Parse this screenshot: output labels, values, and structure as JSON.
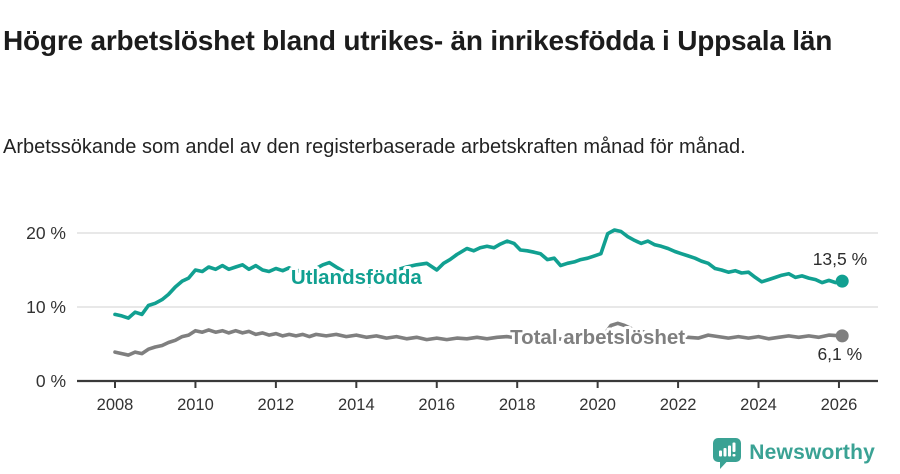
{
  "header": {
    "title": "Högre arbetslöshet bland utrikes- än inrikesfödda i Uppsala län",
    "subtitle": "Arbetssökande som andel av den registerbaserade arbetskraften månad för månad."
  },
  "footer": {
    "brand": "Newsworthy",
    "logo_icon": "newsworthy-speech-bubble-bar-chart-icon"
  },
  "colors": {
    "teal": "#11a091",
    "gray": "#7f7f7f",
    "axis": "#3a3a3a",
    "axis_text": "#333333",
    "grid": "#dadada",
    "value_label": "#2d2d2d",
    "title": "#1c1c1c",
    "subtitle": "#232323",
    "brand": "#3aa294",
    "background": "#ffffff"
  },
  "chart_data": {
    "type": "line",
    "title": "Högre arbetslöshet bland utrikes- än inrikesfödda i Uppsala län",
    "subtitle": "Arbetssökande som andel av den registerbaserade arbetskraften månad för månad.",
    "xlabel": "",
    "ylabel": "",
    "x_range": [
      2007.1,
      2026.9
    ],
    "ylim": [
      0,
      22
    ],
    "grid": "horizontal",
    "legend_position": "inline-labels",
    "x_ticks": [
      2008,
      2010,
      2012,
      2014,
      2016,
      2018,
      2020,
      2022,
      2024,
      2026
    ],
    "x_tick_labels": [
      "2008",
      "2010",
      "2012",
      "2014",
      "2016",
      "2018",
      "2020",
      "2022",
      "2024",
      "2026"
    ],
    "y_ticks": [
      0,
      10,
      20
    ],
    "y_tick_labels": [
      "0 %",
      "10 %",
      "20 %"
    ],
    "series": [
      {
        "name": "Utlandsfödda",
        "color": "#11a091",
        "end_label": "13,5 %",
        "end_value": 13.5,
        "end_label_offset": [
          25,
          -16
        ],
        "inline_label": {
          "text": "Utlandsfödda",
          "x": 2014.0,
          "y": 14.0
        },
        "points": [
          [
            2008.0,
            9.0
          ],
          [
            2008.17,
            8.8
          ],
          [
            2008.33,
            8.5
          ],
          [
            2008.5,
            9.3
          ],
          [
            2008.67,
            9.0
          ],
          [
            2008.83,
            10.2
          ],
          [
            2009.0,
            10.5
          ],
          [
            2009.17,
            11.0
          ],
          [
            2009.33,
            11.7
          ],
          [
            2009.5,
            12.7
          ],
          [
            2009.67,
            13.5
          ],
          [
            2009.83,
            13.9
          ],
          [
            2010.0,
            15.0
          ],
          [
            2010.17,
            14.8
          ],
          [
            2010.33,
            15.4
          ],
          [
            2010.5,
            15.1
          ],
          [
            2010.67,
            15.6
          ],
          [
            2010.83,
            15.1
          ],
          [
            2011.0,
            15.4
          ],
          [
            2011.17,
            15.7
          ],
          [
            2011.33,
            15.1
          ],
          [
            2011.5,
            15.6
          ],
          [
            2011.67,
            15.0
          ],
          [
            2011.83,
            14.8
          ],
          [
            2012.0,
            15.2
          ],
          [
            2012.17,
            14.9
          ],
          [
            2012.33,
            15.3
          ],
          [
            2012.5,
            14.8
          ],
          [
            2012.67,
            15.1
          ],
          [
            2012.83,
            14.8
          ],
          [
            2013.0,
            15.2
          ],
          [
            2013.17,
            15.7
          ],
          [
            2013.33,
            16.0
          ],
          [
            2013.5,
            15.4
          ],
          [
            2013.75,
            14.6
          ],
          [
            2014.0,
            14.2
          ],
          [
            2014.17,
            13.4
          ],
          [
            2014.33,
            12.9
          ],
          [
            2014.5,
            13.6
          ],
          [
            2014.67,
            14.2
          ],
          [
            2014.83,
            14.6
          ],
          [
            2015.0,
            15.0
          ],
          [
            2015.25,
            15.4
          ],
          [
            2015.5,
            15.7
          ],
          [
            2015.75,
            15.9
          ],
          [
            2016.0,
            15.0
          ],
          [
            2016.17,
            15.9
          ],
          [
            2016.33,
            16.4
          ],
          [
            2016.5,
            17.1
          ],
          [
            2016.75,
            17.9
          ],
          [
            2016.92,
            17.6
          ],
          [
            2017.08,
            18.0
          ],
          [
            2017.25,
            18.2
          ],
          [
            2017.42,
            18.0
          ],
          [
            2017.58,
            18.5
          ],
          [
            2017.75,
            18.9
          ],
          [
            2017.92,
            18.6
          ],
          [
            2018.08,
            17.7
          ],
          [
            2018.25,
            17.6
          ],
          [
            2018.42,
            17.4
          ],
          [
            2018.58,
            17.2
          ],
          [
            2018.75,
            16.4
          ],
          [
            2018.92,
            16.6
          ],
          [
            2019.08,
            15.6
          ],
          [
            2019.25,
            15.9
          ],
          [
            2019.42,
            16.1
          ],
          [
            2019.58,
            16.4
          ],
          [
            2019.75,
            16.6
          ],
          [
            2019.92,
            16.9
          ],
          [
            2020.08,
            17.2
          ],
          [
            2020.25,
            19.9
          ],
          [
            2020.42,
            20.4
          ],
          [
            2020.58,
            20.2
          ],
          [
            2020.75,
            19.5
          ],
          [
            2020.92,
            19.0
          ],
          [
            2021.08,
            18.6
          ],
          [
            2021.25,
            18.9
          ],
          [
            2021.42,
            18.4
          ],
          [
            2021.58,
            18.2
          ],
          [
            2021.75,
            17.9
          ],
          [
            2021.92,
            17.5
          ],
          [
            2022.08,
            17.2
          ],
          [
            2022.25,
            16.9
          ],
          [
            2022.42,
            16.6
          ],
          [
            2022.58,
            16.2
          ],
          [
            2022.75,
            15.9
          ],
          [
            2022.92,
            15.2
          ],
          [
            2023.08,
            15.0
          ],
          [
            2023.25,
            14.7
          ],
          [
            2023.42,
            14.9
          ],
          [
            2023.58,
            14.6
          ],
          [
            2023.75,
            14.7
          ],
          [
            2023.92,
            14.0
          ],
          [
            2024.08,
            13.4
          ],
          [
            2024.25,
            13.7
          ],
          [
            2024.42,
            14.0
          ],
          [
            2024.58,
            14.3
          ],
          [
            2024.75,
            14.5
          ],
          [
            2024.92,
            14.0
          ],
          [
            2025.08,
            14.2
          ],
          [
            2025.25,
            13.9
          ],
          [
            2025.42,
            13.7
          ],
          [
            2025.58,
            13.3
          ],
          [
            2025.75,
            13.6
          ],
          [
            2025.92,
            13.3
          ],
          [
            2026.08,
            13.5
          ]
        ]
      },
      {
        "name": "Total arbetslöshet",
        "color": "#7f7f7f",
        "end_label": "6,1 %",
        "end_value": 6.1,
        "end_label_offset": [
          20,
          24
        ],
        "inline_label": {
          "text": "Total arbetslöshet",
          "x": 2020.0,
          "y": 5.9
        },
        "points": [
          [
            2008.0,
            3.9
          ],
          [
            2008.17,
            3.7
          ],
          [
            2008.33,
            3.5
          ],
          [
            2008.5,
            3.9
          ],
          [
            2008.67,
            3.7
          ],
          [
            2008.83,
            4.3
          ],
          [
            2009.0,
            4.6
          ],
          [
            2009.17,
            4.8
          ],
          [
            2009.33,
            5.2
          ],
          [
            2009.5,
            5.5
          ],
          [
            2009.67,
            6.0
          ],
          [
            2009.83,
            6.2
          ],
          [
            2010.0,
            6.8
          ],
          [
            2010.17,
            6.6
          ],
          [
            2010.33,
            6.9
          ],
          [
            2010.5,
            6.6
          ],
          [
            2010.67,
            6.8
          ],
          [
            2010.83,
            6.5
          ],
          [
            2011.0,
            6.8
          ],
          [
            2011.17,
            6.5
          ],
          [
            2011.33,
            6.7
          ],
          [
            2011.5,
            6.3
          ],
          [
            2011.67,
            6.5
          ],
          [
            2011.83,
            6.2
          ],
          [
            2012.0,
            6.4
          ],
          [
            2012.17,
            6.1
          ],
          [
            2012.33,
            6.3
          ],
          [
            2012.5,
            6.1
          ],
          [
            2012.67,
            6.3
          ],
          [
            2012.83,
            6.0
          ],
          [
            2013.0,
            6.3
          ],
          [
            2013.25,
            6.1
          ],
          [
            2013.5,
            6.3
          ],
          [
            2013.75,
            6.0
          ],
          [
            2014.0,
            6.2
          ],
          [
            2014.25,
            5.9
          ],
          [
            2014.5,
            6.1
          ],
          [
            2014.75,
            5.8
          ],
          [
            2015.0,
            6.0
          ],
          [
            2015.25,
            5.7
          ],
          [
            2015.5,
            5.9
          ],
          [
            2015.75,
            5.6
          ],
          [
            2016.0,
            5.8
          ],
          [
            2016.25,
            5.6
          ],
          [
            2016.5,
            5.8
          ],
          [
            2016.75,
            5.7
          ],
          [
            2017.0,
            5.9
          ],
          [
            2017.25,
            5.7
          ],
          [
            2017.5,
            5.9
          ],
          [
            2017.75,
            6.0
          ],
          [
            2018.0,
            5.8
          ],
          [
            2018.25,
            5.7
          ],
          [
            2018.5,
            5.6
          ],
          [
            2018.75,
            5.8
          ],
          [
            2019.0,
            5.7
          ],
          [
            2019.25,
            5.6
          ],
          [
            2019.5,
            5.7
          ],
          [
            2019.75,
            5.8
          ],
          [
            2020.0,
            6.0
          ],
          [
            2020.17,
            6.3
          ],
          [
            2020.33,
            7.5
          ],
          [
            2020.5,
            7.8
          ],
          [
            2020.67,
            7.5
          ],
          [
            2020.83,
            7.1
          ],
          [
            2021.0,
            6.8
          ],
          [
            2021.25,
            6.5
          ],
          [
            2021.5,
            6.3
          ],
          [
            2021.75,
            6.1
          ],
          [
            2022.0,
            6.0
          ],
          [
            2022.25,
            5.9
          ],
          [
            2022.5,
            5.8
          ],
          [
            2022.75,
            6.2
          ],
          [
            2023.0,
            6.0
          ],
          [
            2023.25,
            5.8
          ],
          [
            2023.5,
            6.0
          ],
          [
            2023.75,
            5.8
          ],
          [
            2024.0,
            6.0
          ],
          [
            2024.25,
            5.7
          ],
          [
            2024.5,
            5.9
          ],
          [
            2024.75,
            6.1
          ],
          [
            2025.0,
            5.9
          ],
          [
            2025.25,
            6.1
          ],
          [
            2025.5,
            5.9
          ],
          [
            2025.75,
            6.2
          ],
          [
            2026.08,
            6.1
          ]
        ]
      }
    ]
  }
}
